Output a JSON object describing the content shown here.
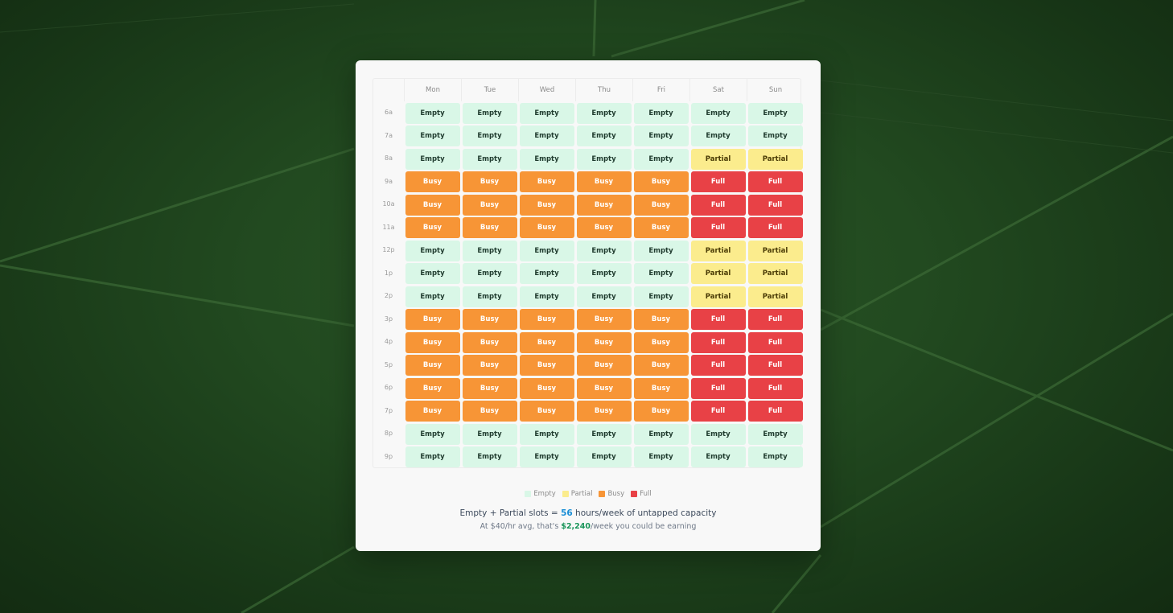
{
  "days": [
    "Mon",
    "Tue",
    "Wed",
    "Thu",
    "Fri",
    "Sat",
    "Sun"
  ],
  "hours": [
    "6a",
    "7a",
    "8a",
    "9a",
    "10a",
    "11a",
    "12p",
    "1p",
    "2p",
    "3p",
    "4p",
    "5p",
    "6p",
    "7p",
    "8p",
    "9p"
  ],
  "status_labels": {
    "empty": "Empty",
    "partial": "Partial",
    "busy": "Busy",
    "full": "Full"
  },
  "status_colors": {
    "empty": "#d9f7e7",
    "partial": "#fbec8d",
    "busy": "#f79536",
    "full": "#e84146"
  },
  "schedule": [
    [
      "empty",
      "empty",
      "empty",
      "empty",
      "empty",
      "empty",
      "empty"
    ],
    [
      "empty",
      "empty",
      "empty",
      "empty",
      "empty",
      "empty",
      "empty"
    ],
    [
      "empty",
      "empty",
      "empty",
      "empty",
      "empty",
      "partial",
      "partial"
    ],
    [
      "busy",
      "busy",
      "busy",
      "busy",
      "busy",
      "full",
      "full"
    ],
    [
      "busy",
      "busy",
      "busy",
      "busy",
      "busy",
      "full",
      "full"
    ],
    [
      "busy",
      "busy",
      "busy",
      "busy",
      "busy",
      "full",
      "full"
    ],
    [
      "empty",
      "empty",
      "empty",
      "empty",
      "empty",
      "partial",
      "partial"
    ],
    [
      "empty",
      "empty",
      "empty",
      "empty",
      "empty",
      "partial",
      "partial"
    ],
    [
      "empty",
      "empty",
      "empty",
      "empty",
      "empty",
      "partial",
      "partial"
    ],
    [
      "busy",
      "busy",
      "busy",
      "busy",
      "busy",
      "full",
      "full"
    ],
    [
      "busy",
      "busy",
      "busy",
      "busy",
      "busy",
      "full",
      "full"
    ],
    [
      "busy",
      "busy",
      "busy",
      "busy",
      "busy",
      "full",
      "full"
    ],
    [
      "busy",
      "busy",
      "busy",
      "busy",
      "busy",
      "full",
      "full"
    ],
    [
      "busy",
      "busy",
      "busy",
      "busy",
      "busy",
      "full",
      "full"
    ],
    [
      "empty",
      "empty",
      "empty",
      "empty",
      "empty",
      "empty",
      "empty"
    ],
    [
      "empty",
      "empty",
      "empty",
      "empty",
      "empty",
      "empty",
      "empty"
    ]
  ],
  "legend": [
    {
      "key": "empty",
      "label": "Empty"
    },
    {
      "key": "partial",
      "label": "Partial"
    },
    {
      "key": "busy",
      "label": "Busy"
    },
    {
      "key": "full",
      "label": "Full"
    }
  ],
  "summary": {
    "prefix": "Empty + Partial slots = ",
    "hours": "56",
    "suffix": " hours/week of untapped capacity"
  },
  "sub": {
    "prefix": "At $40/hr avg, that's ",
    "amount": "$2,240",
    "suffix": "/week you could be earning"
  }
}
